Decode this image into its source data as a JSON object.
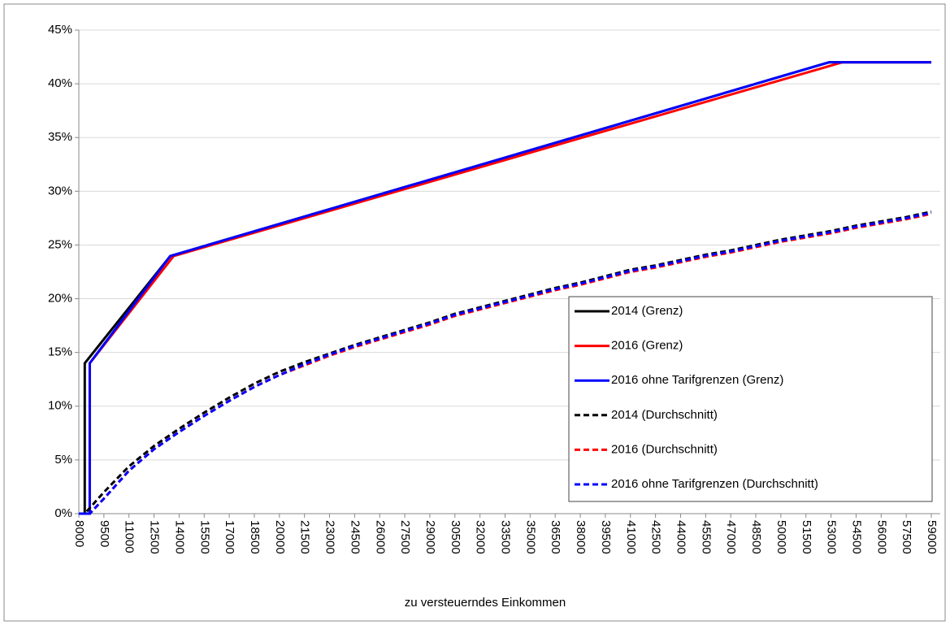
{
  "chart_data": {
    "type": "line",
    "x_label": "zu versteuerndes  Einkommen",
    "xlim": [
      8000,
      59000
    ],
    "xticks": [
      8000,
      9500,
      11000,
      12500,
      14000,
      15500,
      17000,
      18500,
      20000,
      21500,
      23000,
      24500,
      26000,
      27500,
      29000,
      30500,
      32000,
      33500,
      35000,
      36500,
      38000,
      39500,
      41000,
      42500,
      44000,
      45500,
      47000,
      48500,
      50000,
      51500,
      53000,
      54500,
      56000,
      57500,
      59000
    ],
    "ylim": [
      0,
      45
    ],
    "yticks": [
      {
        "value": 0,
        "label": "0%"
      },
      {
        "value": 5,
        "label": "5%"
      },
      {
        "value": 10,
        "label": "10%"
      },
      {
        "value": 15,
        "label": "15%"
      },
      {
        "value": 20,
        "label": "20%"
      },
      {
        "value": 25,
        "label": "25%"
      },
      {
        "value": 30,
        "label": "30%"
      },
      {
        "value": 35,
        "label": "35%"
      },
      {
        "value": 40,
        "label": "40%"
      },
      {
        "value": 45,
        "label": "45%"
      }
    ],
    "grid": true,
    "legend": "lower right",
    "series": [
      {
        "name": "2014 (Grenz)",
        "color": "#000000",
        "dashed": false,
        "x": [
          8000,
          8354,
          8355,
          13469,
          52881,
          59000
        ],
        "values": [
          0,
          0,
          14,
          23.97,
          42,
          42
        ]
      },
      {
        "name": "2016 (Grenz)",
        "color": "#ff0000",
        "dashed": false,
        "x": [
          8000,
          8652,
          8653,
          13670,
          53666,
          59000
        ],
        "values": [
          0,
          0,
          14,
          23.97,
          42,
          42
        ]
      },
      {
        "name": "2016 ohne Tarifgrenzen (Grenz)",
        "color": "#0000ff",
        "dashed": false,
        "x": [
          8000,
          8652,
          8653,
          13469,
          52881,
          59000
        ],
        "values": [
          0,
          0,
          14,
          23.97,
          42,
          42
        ]
      },
      {
        "name": "2014 (Durchschnitt)",
        "color": "#000000",
        "dashed": true,
        "x": [
          8000,
          8354,
          9500,
          11000,
          12500,
          14000,
          15500,
          17000,
          18500,
          20000,
          21500,
          23000,
          24500,
          26000,
          27500,
          29000,
          30500,
          32000,
          33500,
          35000,
          36500,
          38000,
          39500,
          41000,
          42500,
          44000,
          45500,
          47000,
          48500,
          50000,
          51500,
          53000,
          54500,
          56000,
          57500,
          59000
        ],
        "values": [
          0,
          0,
          2.0,
          4.4,
          6.3,
          7.9,
          9.4,
          10.8,
          12.1,
          13.2,
          14.1,
          14.9,
          15.7,
          16.4,
          17.1,
          17.8,
          18.6,
          19.2,
          19.8,
          20.4,
          21.0,
          21.5,
          22.1,
          22.7,
          23.1,
          23.6,
          24.1,
          24.5,
          25.0,
          25.5,
          25.9,
          26.3,
          26.8,
          27.2,
          27.6,
          28.1
        ]
      },
      {
        "name": "2016 (Durchschnitt)",
        "color": "#ff0000",
        "dashed": true,
        "x": [
          8000,
          8652,
          9500,
          11000,
          12500,
          14000,
          15500,
          17000,
          18500,
          20000,
          21500,
          23000,
          24500,
          26000,
          27500,
          29000,
          30500,
          32000,
          33500,
          35000,
          36500,
          38000,
          39500,
          41000,
          42500,
          44000,
          45500,
          47000,
          48500,
          50000,
          51500,
          53000,
          54500,
          56000,
          57500,
          59000
        ],
        "values": [
          0,
          0,
          1.4,
          4.0,
          6.0,
          7.6,
          9.1,
          10.5,
          11.8,
          12.9,
          13.8,
          14.7,
          15.5,
          16.2,
          16.9,
          17.6,
          18.4,
          19.0,
          19.6,
          20.2,
          20.8,
          21.3,
          21.9,
          22.5,
          22.9,
          23.4,
          23.9,
          24.3,
          24.8,
          25.3,
          25.7,
          26.1,
          26.6,
          27.0,
          27.4,
          27.9
        ]
      },
      {
        "name": "2016 ohne Tarifgrenzen (Durchschnitt)",
        "color": "#0000ff",
        "dashed": true,
        "x": [
          8000,
          8652,
          9500,
          11000,
          12500,
          14000,
          15500,
          17000,
          18500,
          20000,
          21500,
          23000,
          24500,
          26000,
          27500,
          29000,
          30500,
          32000,
          33500,
          35000,
          36500,
          38000,
          39500,
          41000,
          42500,
          44000,
          45500,
          47000,
          48500,
          50000,
          51500,
          53000,
          54500,
          56000,
          57500,
          59000
        ],
        "values": [
          0,
          0,
          1.4,
          4.0,
          6.0,
          7.6,
          9.1,
          10.5,
          11.8,
          12.9,
          13.9,
          14.8,
          15.6,
          16.3,
          17.0,
          17.7,
          18.5,
          19.1,
          19.7,
          20.3,
          20.9,
          21.4,
          22.0,
          22.6,
          23.0,
          23.5,
          24.0,
          24.4,
          24.9,
          25.4,
          25.8,
          26.2,
          26.7,
          27.1,
          27.5,
          28.0
        ]
      }
    ]
  }
}
